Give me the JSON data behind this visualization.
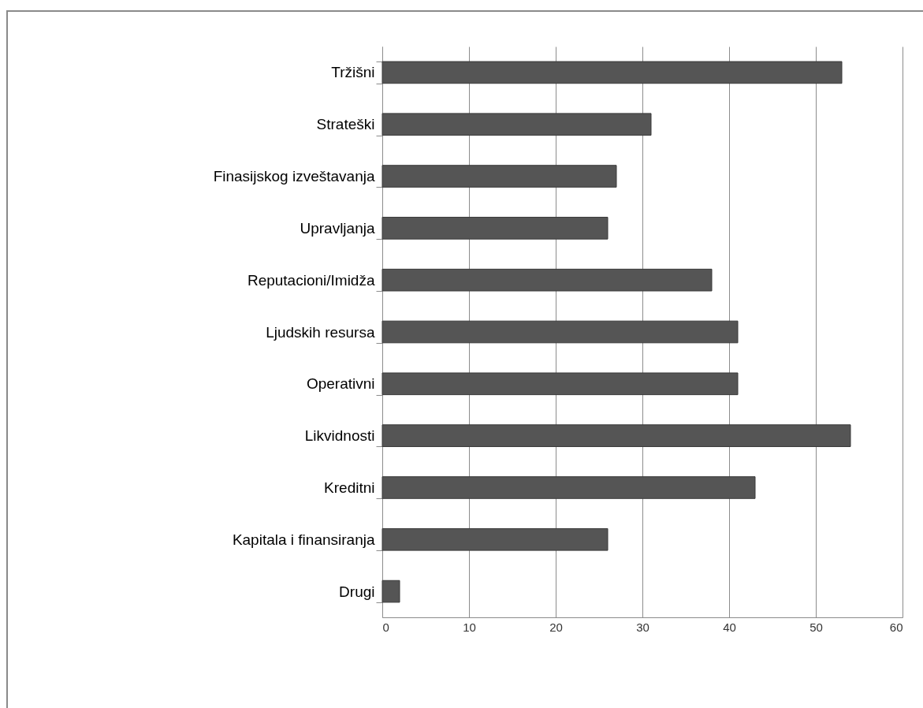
{
  "chart_data": {
    "type": "bar",
    "orientation": "horizontal",
    "categories": [
      "Tržišni",
      "Strateški",
      "Finasijskog izveštavanja",
      "Upravljanja",
      "Reputacioni/Imidža",
      "Ljudskih resursa",
      "Operativni",
      "Likvidnosti",
      "Kreditni",
      "Kapitala i finansiranja",
      "Drugi"
    ],
    "values": [
      53,
      31,
      27,
      26,
      38,
      41,
      41,
      54,
      43,
      26,
      2
    ],
    "color": "#555555",
    "xlim": [
      0,
      60
    ],
    "xticks": [
      0,
      10,
      20,
      30,
      40,
      50,
      60
    ],
    "grid": "x"
  }
}
